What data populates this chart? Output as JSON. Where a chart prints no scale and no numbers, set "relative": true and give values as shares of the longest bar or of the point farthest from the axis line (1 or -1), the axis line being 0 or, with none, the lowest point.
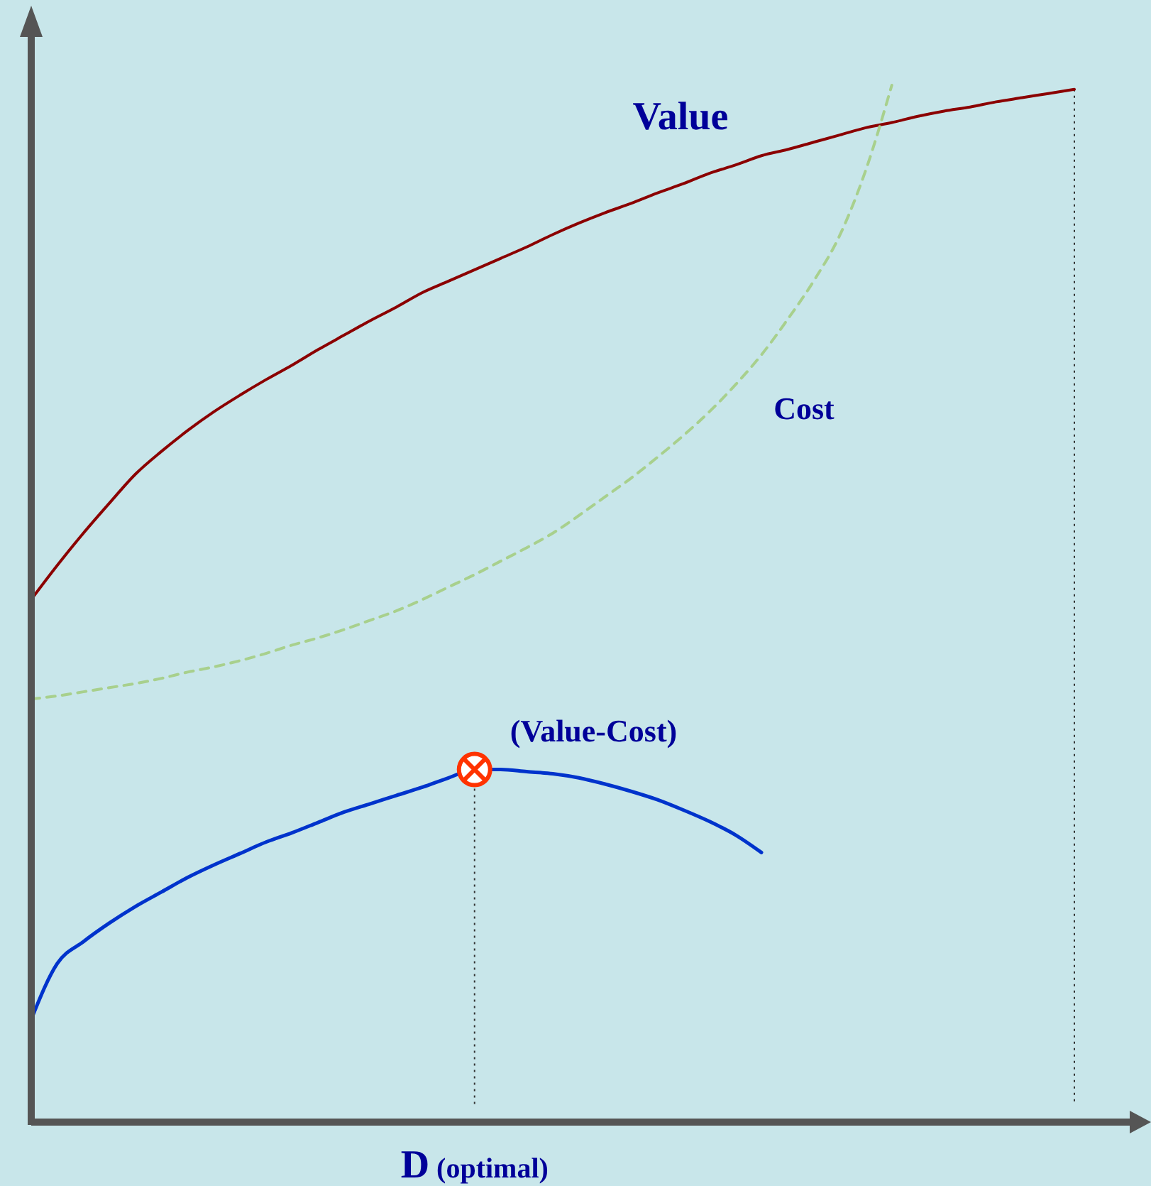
{
  "chart_data": {
    "type": "line",
    "relative": true,
    "categories": [
      null,
      null,
      null,
      null,
      null,
      null,
      null,
      null,
      null,
      null,
      null,
      null,
      null,
      null,
      null,
      null,
      null,
      null,
      null,
      null,
      null,
      null,
      null,
      null,
      null,
      null,
      null,
      null,
      null,
      null,
      null,
      null,
      null,
      null,
      null,
      null,
      null,
      null,
      null,
      null,
      null
    ],
    "series": [
      {
        "name": "Value",
        "color": "#8b0000",
        "line_style": "solid",
        "values": [
          0.504,
          0.537,
          0.568,
          0.597,
          0.625,
          0.647,
          0.667,
          0.685,
          0.701,
          0.716,
          0.73,
          0.745,
          0.759,
          0.773,
          0.786,
          0.8,
          0.811,
          0.822,
          0.833,
          0.844,
          0.856,
          0.867,
          0.877,
          0.886,
          0.896,
          0.905,
          0.915,
          0.923,
          0.932,
          0.938,
          0.945,
          0.952,
          0.959,
          0.964,
          0.97,
          0.975,
          0.979,
          0.984,
          0.988,
          0.992,
          0.996
        ]
      },
      {
        "name": "Cost",
        "color": "#a8d08d",
        "line_style": "dashed",
        "values": [
          0.408,
          0.411,
          0.415,
          0.419,
          0.423,
          0.428,
          0.434,
          0.439,
          0.445,
          0.452,
          0.46,
          0.467,
          0.475,
          0.484,
          0.493,
          0.504,
          0.516,
          0.528,
          0.541,
          0.554,
          0.568,
          0.585,
          0.603,
          0.621,
          0.641,
          0.662,
          0.685,
          0.711,
          0.74,
          0.774,
          0.811,
          0.855,
          0.918,
          1.0,
          null,
          null,
          null,
          null,
          null,
          null,
          null
        ]
      },
      {
        "name": "(Value-Cost)",
        "color": "#0033cc",
        "line_style": "solid",
        "values": [
          0.099,
          0.153,
          0.174,
          0.192,
          0.208,
          0.222,
          0.236,
          0.248,
          0.259,
          0.27,
          0.279,
          0.289,
          0.299,
          0.307,
          0.315,
          0.323,
          0.332,
          0.34,
          0.34,
          0.338,
          0.336,
          0.332,
          0.326,
          0.319,
          0.311,
          0.301,
          0.29,
          0.277,
          0.26,
          null,
          null,
          null,
          null,
          null,
          null,
          null,
          null,
          null,
          null,
          null,
          null
        ]
      }
    ],
    "annotations": [
      "D (optimal)"
    ]
  }
}
